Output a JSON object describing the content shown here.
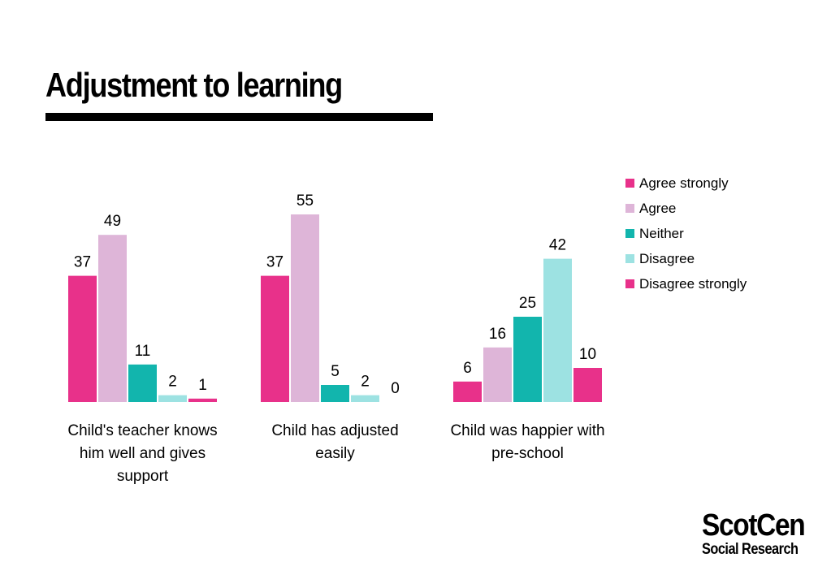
{
  "title": "Adjustment to learning",
  "logo": {
    "main": "ScotCen",
    "sub": "Social Research"
  },
  "chart_data": {
    "type": "bar",
    "categories": [
      [
        "Child's teacher knows",
        "him well and gives",
        "support"
      ],
      [
        "Child has adjusted",
        "easily"
      ],
      [
        "Child was happier with",
        "pre-school"
      ]
    ],
    "series": [
      {
        "name": "Agree strongly",
        "color": "#e8318a",
        "values": [
          37,
          37,
          6
        ]
      },
      {
        "name": "Agree",
        "color": "#deb5d8",
        "values": [
          49,
          55,
          16
        ]
      },
      {
        "name": "Neither",
        "color": "#12b5ad",
        "values": [
          11,
          5,
          25
        ]
      },
      {
        "name": "Disagree",
        "color": "#9de2e2",
        "values": [
          2,
          2,
          42
        ]
      },
      {
        "name": "Disagree strongly",
        "color": "#e8318a",
        "values": [
          1,
          0,
          10
        ]
      }
    ],
    "data_labels": true,
    "ylim": [
      0,
      60
    ],
    "grid": false,
    "legend_position": "top-right"
  }
}
